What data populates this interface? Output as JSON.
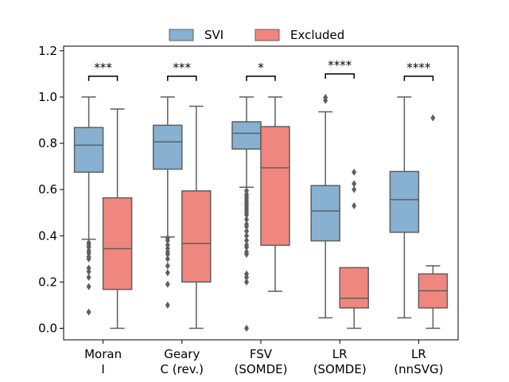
{
  "chart_data": {
    "type": "box",
    "categories": [
      [
        "Moran",
        "I"
      ],
      [
        "Geary",
        "C (rev.)"
      ],
      [
        "FSV",
        "(SOMDE)"
      ],
      [
        "LR",
        "(SOMDE)"
      ],
      [
        "LR",
        "(nnSVG)"
      ]
    ],
    "ylim": [
      -0.05,
      1.22
    ],
    "yticks": [
      0.0,
      0.2,
      0.4,
      0.6,
      0.8,
      1.0,
      1.2
    ],
    "ytick_labels": [
      "0.0",
      "0.2",
      "0.4",
      "0.6",
      "0.8",
      "1.0",
      "1.2"
    ],
    "legend": {
      "placement": "top-center",
      "columns": 2
    },
    "series": [
      {
        "name": "SVI",
        "color": "#88b0d0",
        "boxes": [
          {
            "whislo": 0.385,
            "q1": 0.675,
            "med": 0.792,
            "q3": 0.868,
            "whishi": 1.0,
            "fliers": [
              0.07,
              0.18,
              0.22,
              0.245,
              0.26,
              0.3,
              0.31,
              0.325,
              0.335,
              0.35,
              0.36,
              0.37
            ]
          },
          {
            "whislo": 0.395,
            "q1": 0.688,
            "med": 0.806,
            "q3": 0.878,
            "whishi": 1.0,
            "fliers": [
              0.1,
              0.19,
              0.24,
              0.27,
              0.3,
              0.32,
              0.33,
              0.345,
              0.36,
              0.38,
              0.39
            ]
          },
          {
            "whislo": 0.61,
            "q1": 0.775,
            "med": 0.843,
            "q3": 0.893,
            "whishi": 1.0,
            "fliers": [
              0.0,
              0.2,
              0.22,
              0.235,
              0.32,
              0.33,
              0.35,
              0.36,
              0.38,
              0.4,
              0.42,
              0.44,
              0.45,
              0.47,
              0.49,
              0.5,
              0.51,
              0.52,
              0.53,
              0.54,
              0.55,
              0.56,
              0.57,
              0.58,
              0.595
            ]
          },
          {
            "whislo": 0.045,
            "q1": 0.378,
            "med": 0.507,
            "q3": 0.617,
            "whishi": 0.936,
            "fliers": [
              0.985,
              0.998
            ]
          },
          {
            "whislo": 0.045,
            "q1": 0.415,
            "med": 0.556,
            "q3": 0.678,
            "whishi": 1.0,
            "fliers": []
          }
        ]
      },
      {
        "name": "Excluded",
        "color": "#f0877e",
        "boxes": [
          {
            "whislo": 0.0,
            "q1": 0.168,
            "med": 0.344,
            "q3": 0.564,
            "whishi": 0.948,
            "fliers": []
          },
          {
            "whislo": 0.0,
            "q1": 0.2,
            "med": 0.367,
            "q3": 0.594,
            "whishi": 0.96,
            "fliers": []
          },
          {
            "whislo": 0.16,
            "q1": 0.359,
            "med": 0.694,
            "q3": 0.872,
            "whishi": 1.0,
            "fliers": []
          },
          {
            "whislo": 0.0,
            "q1": 0.088,
            "med": 0.13,
            "q3": 0.262,
            "whishi": 0.262,
            "fliers": [
              0.53,
              0.6,
              0.625,
              0.675
            ]
          },
          {
            "whislo": 0.0,
            "q1": 0.088,
            "med": 0.162,
            "q3": 0.235,
            "whishi": 0.27,
            "fliers": [
              0.91
            ]
          }
        ]
      }
    ],
    "significance": [
      {
        "label": "***",
        "y": 1.09
      },
      {
        "label": "***",
        "y": 1.09
      },
      {
        "label": "*",
        "y": 1.09
      },
      {
        "label": "****",
        "y": 1.1
      },
      {
        "label": "****",
        "y": 1.09
      }
    ]
  }
}
